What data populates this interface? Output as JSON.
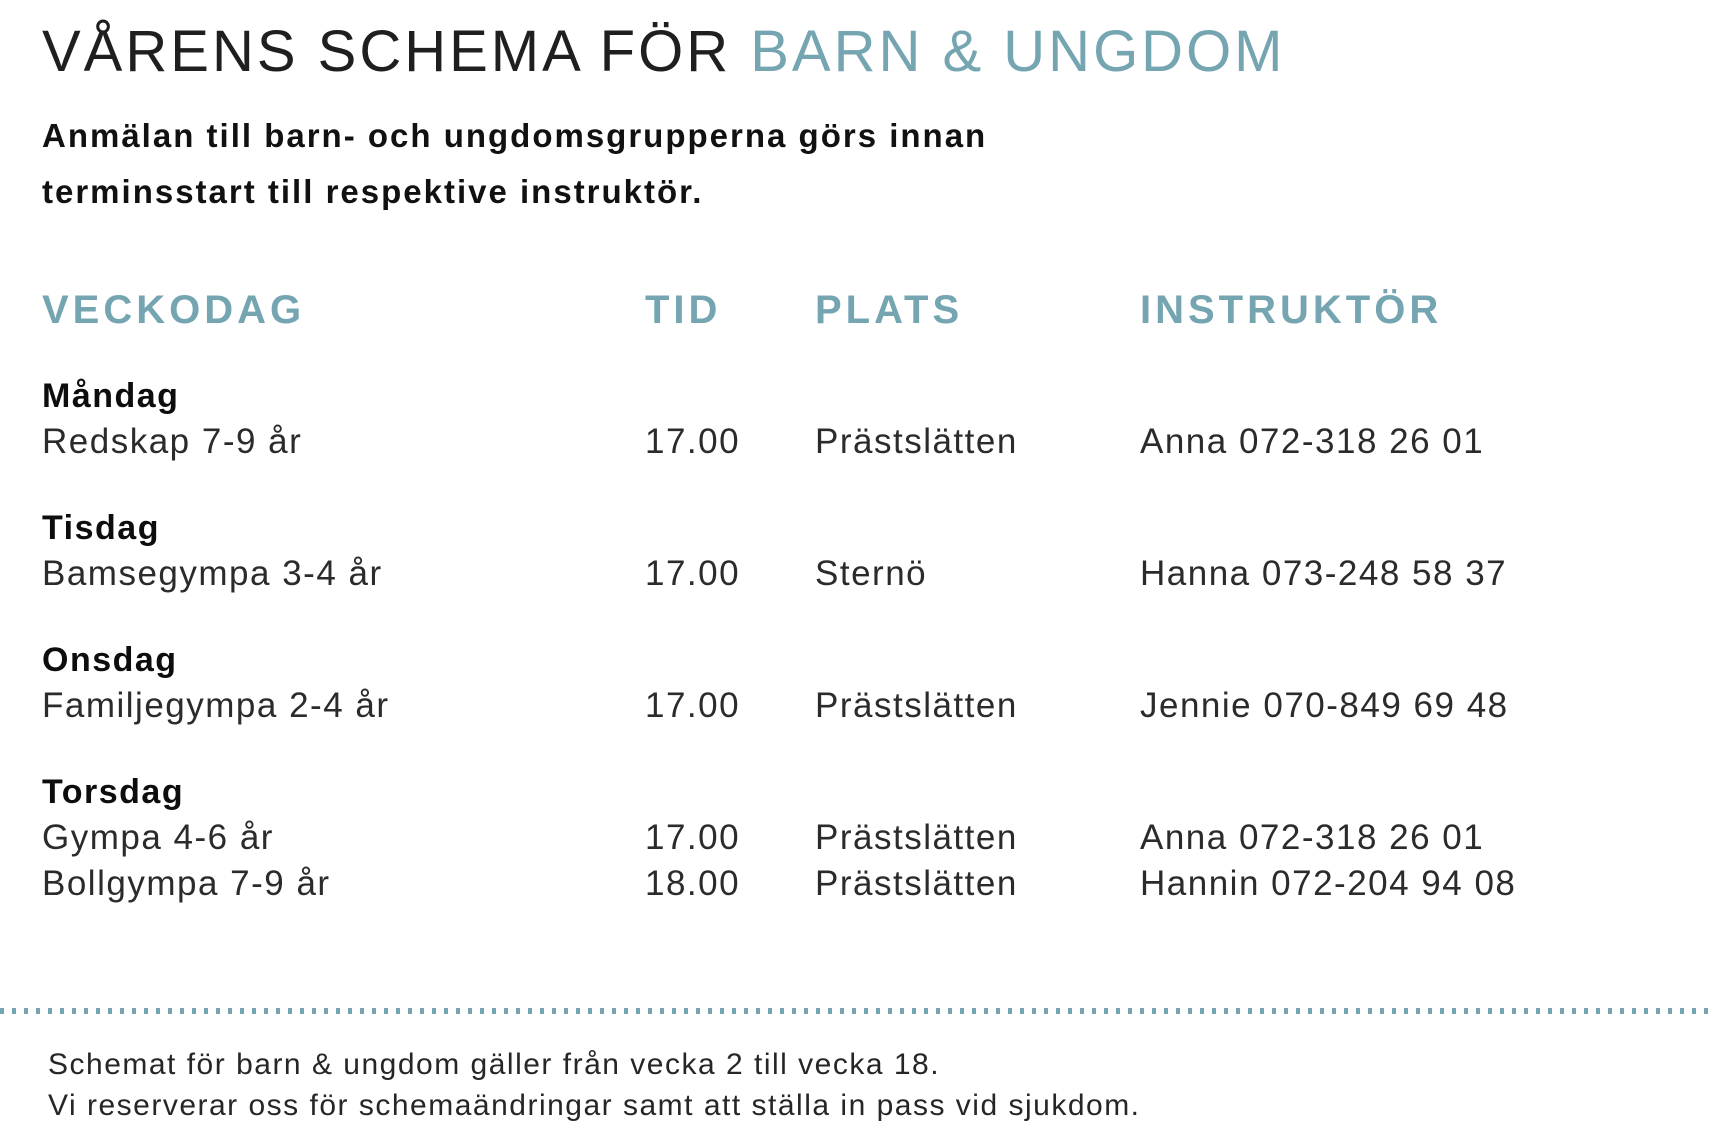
{
  "colors": {
    "accent": "#74a5b1",
    "text": "#1c1c1c"
  },
  "title": {
    "main": "VÅRENS SCHEMA FÖR ",
    "accent": "BARN & UNGDOM"
  },
  "intro": {
    "lines": [
      "Anmälan till barn- och ungdomsgrupperna görs innan",
      "terminsstart till respektive instruktör."
    ]
  },
  "table": {
    "headers": [
      "VECKODAG",
      "TID",
      "PLATS",
      "INSTRUKTÖR"
    ],
    "groups": [
      {
        "day": "Måndag",
        "rows": [
          {
            "activity": "Redskap 7-9 år",
            "time": "17.00",
            "place": "Prästslätten",
            "instructor": "Anna 072-318 26 01"
          }
        ]
      },
      {
        "day": "Tisdag",
        "rows": [
          {
            "activity": "Bamsegympa 3-4 år",
            "time": "17.00",
            "place": "Sternö",
            "instructor": "Hanna 073-248 58 37"
          }
        ]
      },
      {
        "day": "Onsdag",
        "rows": [
          {
            "activity": "Familjegympa 2-4 år",
            "time": "17.00",
            "place": "Prästslätten",
            "instructor": "Jennie 070-849 69 48"
          }
        ]
      },
      {
        "day": "Torsdag",
        "rows": [
          {
            "activity": "Gympa 4-6 år",
            "time": "17.00",
            "place": "Prästslätten",
            "instructor": "Anna 072-318 26 01"
          },
          {
            "activity": "Bollgympa 7-9 år",
            "time": "18.00",
            "place": "Prästslätten",
            "instructor": "Hannin 072-204 94 08"
          }
        ]
      }
    ]
  },
  "footer": {
    "lines": [
      "Schemat för barn & ungdom gäller från vecka 2 till vecka 18.",
      "Vi reserverar oss för schemaändringar samt att ställa in pass vid sjukdom."
    ]
  }
}
